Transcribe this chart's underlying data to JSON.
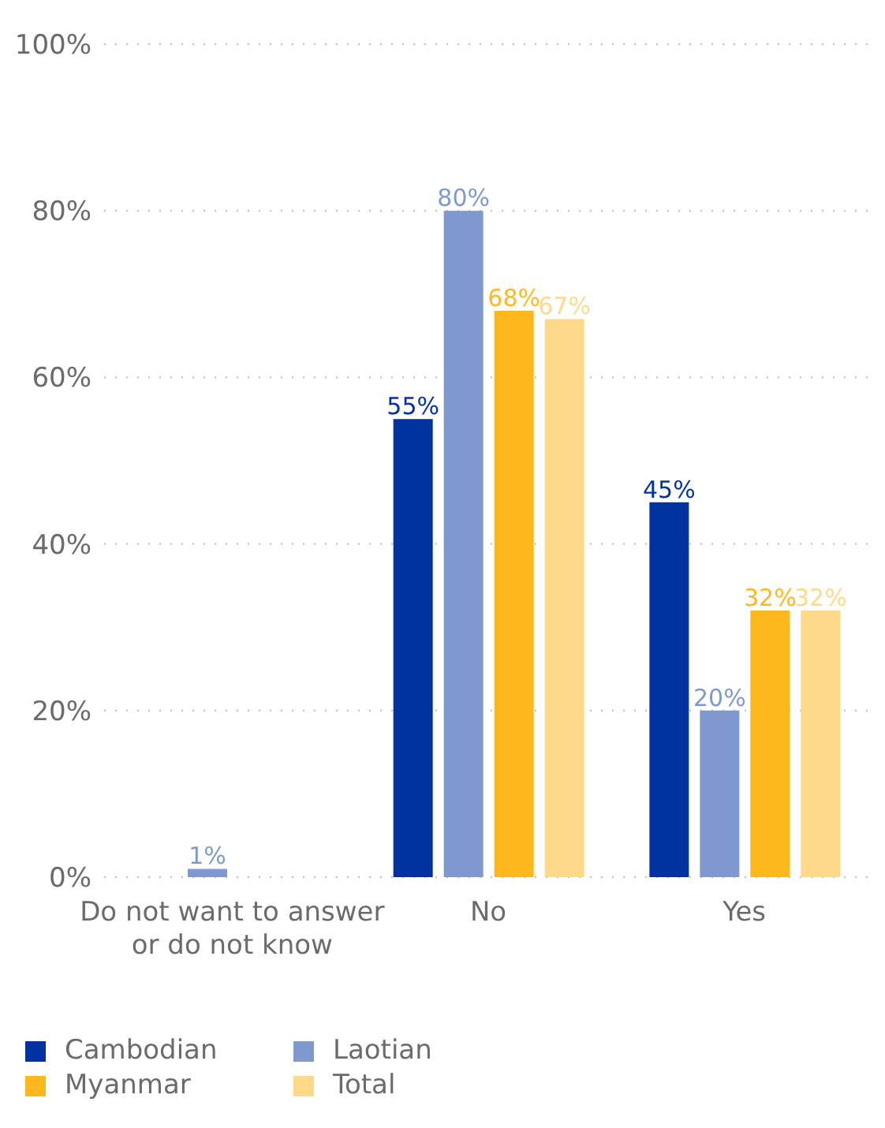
{
  "chart_data": {
    "type": "bar",
    "categories": [
      "Do not want to answer or do not know",
      "No",
      "Yes"
    ],
    "series": [
      {
        "name": "Cambodian",
        "color": "#0033a0",
        "values": [
          null,
          55,
          45
        ],
        "value_labels": [
          null,
          "55%",
          "45%"
        ]
      },
      {
        "name": "Laotian",
        "color": "#7f99d0",
        "values": [
          1,
          80,
          20
        ],
        "value_labels": [
          "1%",
          "80%",
          "20%"
        ]
      },
      {
        "name": "Myanmar",
        "color": "#ffb81c",
        "values": [
          null,
          68,
          32
        ],
        "value_labels": [
          null,
          "68%",
          "32%"
        ]
      },
      {
        "name": "Total",
        "color": "#ffd98a",
        "values": [
          null,
          67,
          32
        ],
        "value_labels": [
          null,
          "67%",
          "32%"
        ]
      }
    ],
    "ylim": [
      0,
      100
    ],
    "yticks": [
      {
        "value": 0,
        "label": "0%"
      },
      {
        "value": 20,
        "label": "20%"
      },
      {
        "value": 40,
        "label": "40%"
      },
      {
        "value": 60,
        "label": "60%"
      },
      {
        "value": 80,
        "label": "80%"
      },
      {
        "value": 100,
        "label": "100%"
      }
    ],
    "grid": "y",
    "legend": "bottom left"
  }
}
